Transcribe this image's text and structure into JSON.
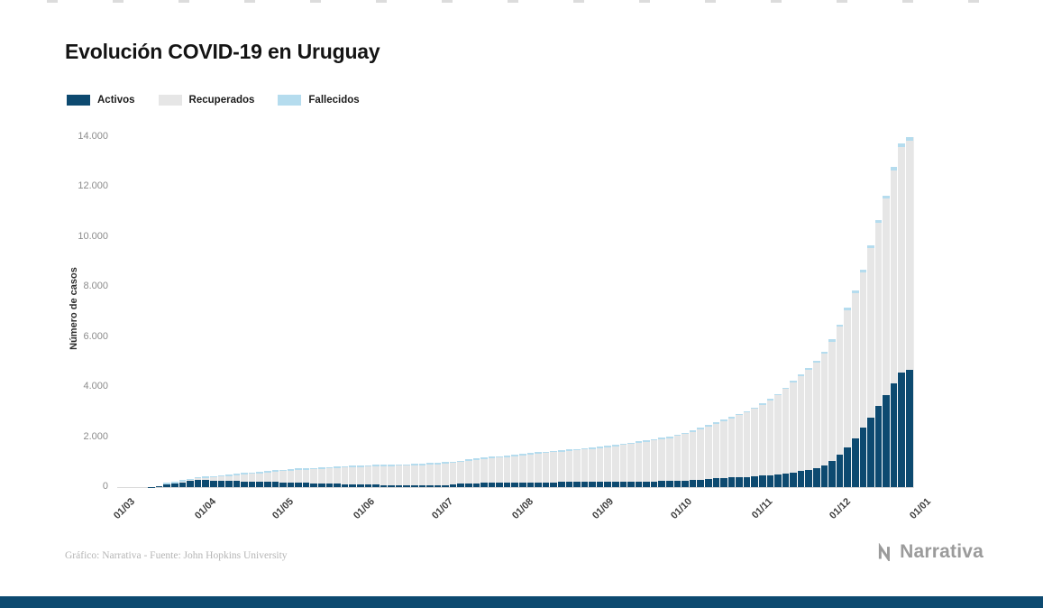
{
  "title": "Evolución COVID-19 en Uruguay",
  "credits": "Gráfico: Narrativa - Fuente: John Hopkins University",
  "brand": "Narrativa",
  "accent_color": "#0d4a70",
  "legend": [
    {
      "label": "Activos",
      "color": "#0d4a70"
    },
    {
      "label": "Recuperados",
      "color": "#e6e6e6"
    },
    {
      "label": "Fallecidos",
      "color": "#b5dcee"
    }
  ],
  "chart_data": {
    "type": "bar",
    "stacked": true,
    "title": "Evolución COVID-19 en Uruguay",
    "xlabel": "",
    "ylabel": "Número de casos",
    "ylim": [
      0,
      14000
    ],
    "grid": false,
    "legend_position": "top-left",
    "y_ticks": [
      0,
      2000,
      4000,
      6000,
      8000,
      10000,
      12000,
      14000
    ],
    "y_tick_labels": [
      "0",
      "2.000",
      "4.000",
      "6.000",
      "8.000",
      "10.000",
      "12.000",
      "14.000"
    ],
    "x_tick_labels": [
      "01/03",
      "01/04",
      "01/05",
      "01/06",
      "01/07",
      "01/08",
      "01/09",
      "01/10",
      "01/11",
      "01/12",
      "01/01"
    ],
    "x_tick_days": [
      0,
      31,
      61,
      92,
      122,
      153,
      184,
      214,
      245,
      275,
      306
    ],
    "x_total_days": 306,
    "days": [
      0,
      3,
      6,
      9,
      12,
      15,
      18,
      21,
      24,
      27,
      30,
      33,
      36,
      39,
      42,
      45,
      48,
      51,
      54,
      57,
      60,
      63,
      66,
      69,
      72,
      75,
      78,
      81,
      84,
      87,
      90,
      93,
      96,
      99,
      102,
      105,
      108,
      111,
      114,
      117,
      120,
      123,
      126,
      129,
      132,
      135,
      138,
      141,
      144,
      147,
      150,
      153,
      156,
      159,
      162,
      165,
      168,
      171,
      174,
      177,
      180,
      183,
      186,
      189,
      192,
      195,
      198,
      201,
      204,
      207,
      210,
      213,
      216,
      219,
      222,
      225,
      228,
      231,
      234,
      237,
      240,
      243,
      246,
      249,
      252,
      255,
      258,
      261,
      264,
      267,
      270,
      273,
      276,
      279,
      282,
      285,
      288,
      291,
      294,
      297,
      300,
      303,
      305
    ],
    "series": [
      {
        "name": "Activos",
        "color": "#0d4a70",
        "values": [
          0,
          0,
          0,
          0,
          4,
          45,
          100,
          140,
          190,
          240,
          300,
          290,
          270,
          260,
          250,
          240,
          230,
          220,
          210,
          206,
          201,
          193,
          187,
          180,
          164,
          155,
          146,
          137,
          129,
          121,
          113,
          106,
          99,
          92,
          86,
          80,
          74,
          69,
          67,
          64,
          62,
          68,
          90,
          113,
          130,
          145,
          160,
          171,
          173,
          176,
          178,
          181,
          185,
          189,
          192,
          195,
          198,
          202,
          206,
          210,
          215,
          220,
          216,
          211,
          214,
          220,
          226,
          231,
          233,
          235,
          238,
          240,
          249,
          257,
          278,
          305,
          332,
          355,
          370,
          385,
          400,
          415,
          433,
          453,
          480,
          510,
          547,
          587,
          633,
          683,
          767,
          867,
          1033,
          1300,
          1600,
          1967,
          2367,
          2767,
          3233,
          3667,
          4133,
          4567,
          4700
        ]
      },
      {
        "name": "Recuperados",
        "color": "#e6e6e6",
        "values": [
          0,
          0,
          0,
          0,
          0,
          0,
          5,
          15,
          25,
          35,
          50,
          85,
          120,
          160,
          200,
          240,
          280,
          315,
          350,
          384,
          419,
          448,
          474,
          501,
          528,
          555,
          582,
          608,
          633,
          657,
          682,
          700,
          716,
          732,
          747,
          761,
          775,
          790,
          805,
          820,
          835,
          846,
          848,
          849,
          869,
          898,
          926,
          953,
          979,
          1005,
          1030,
          1056,
          1085,
          1113,
          1140,
          1166,
          1192,
          1218,
          1240,
          1263,
          1285,
          1308,
          1345,
          1383,
          1421,
          1460,
          1499,
          1540,
          1586,
          1632,
          1677,
          1723,
          1795,
          1866,
          1941,
          2019,
          2096,
          2180,
          2278,
          2376,
          2474,
          2572,
          2697,
          2834,
          2992,
          3161,
          3373,
          3606,
          3816,
          4014,
          4231,
          4458,
          4791,
          5117,
          5478,
          5807,
          6235,
          6797,
          7324,
          7883,
          8541,
          9034,
          9165
        ]
      },
      {
        "name": "Fallecidos",
        "color": "#b5dcee",
        "values": [
          0,
          0,
          0,
          0,
          0,
          0,
          1,
          1,
          1,
          1,
          1,
          2,
          4,
          6,
          7,
          8,
          10,
          12,
          14,
          15,
          16,
          17,
          18,
          19,
          19,
          20,
          20,
          20,
          21,
          21,
          22,
          22,
          23,
          24,
          24,
          25,
          25,
          25,
          26,
          26,
          27,
          27,
          29,
          30,
          31,
          32,
          32,
          33,
          34,
          35,
          36,
          37,
          38,
          38,
          38,
          39,
          40,
          40,
          41,
          41,
          42,
          42,
          43,
          44,
          44,
          45,
          45,
          45,
          46,
          46,
          47,
          47,
          48,
          50,
          51,
          52,
          52,
          53,
          54,
          55,
          56,
          57,
          58,
          60,
          61,
          63,
          64,
          66,
          67,
          69,
          72,
          75,
          79,
          83,
          88,
          93,
          98,
          103,
          110,
          117,
          125,
          133,
          135
        ]
      }
    ]
  }
}
